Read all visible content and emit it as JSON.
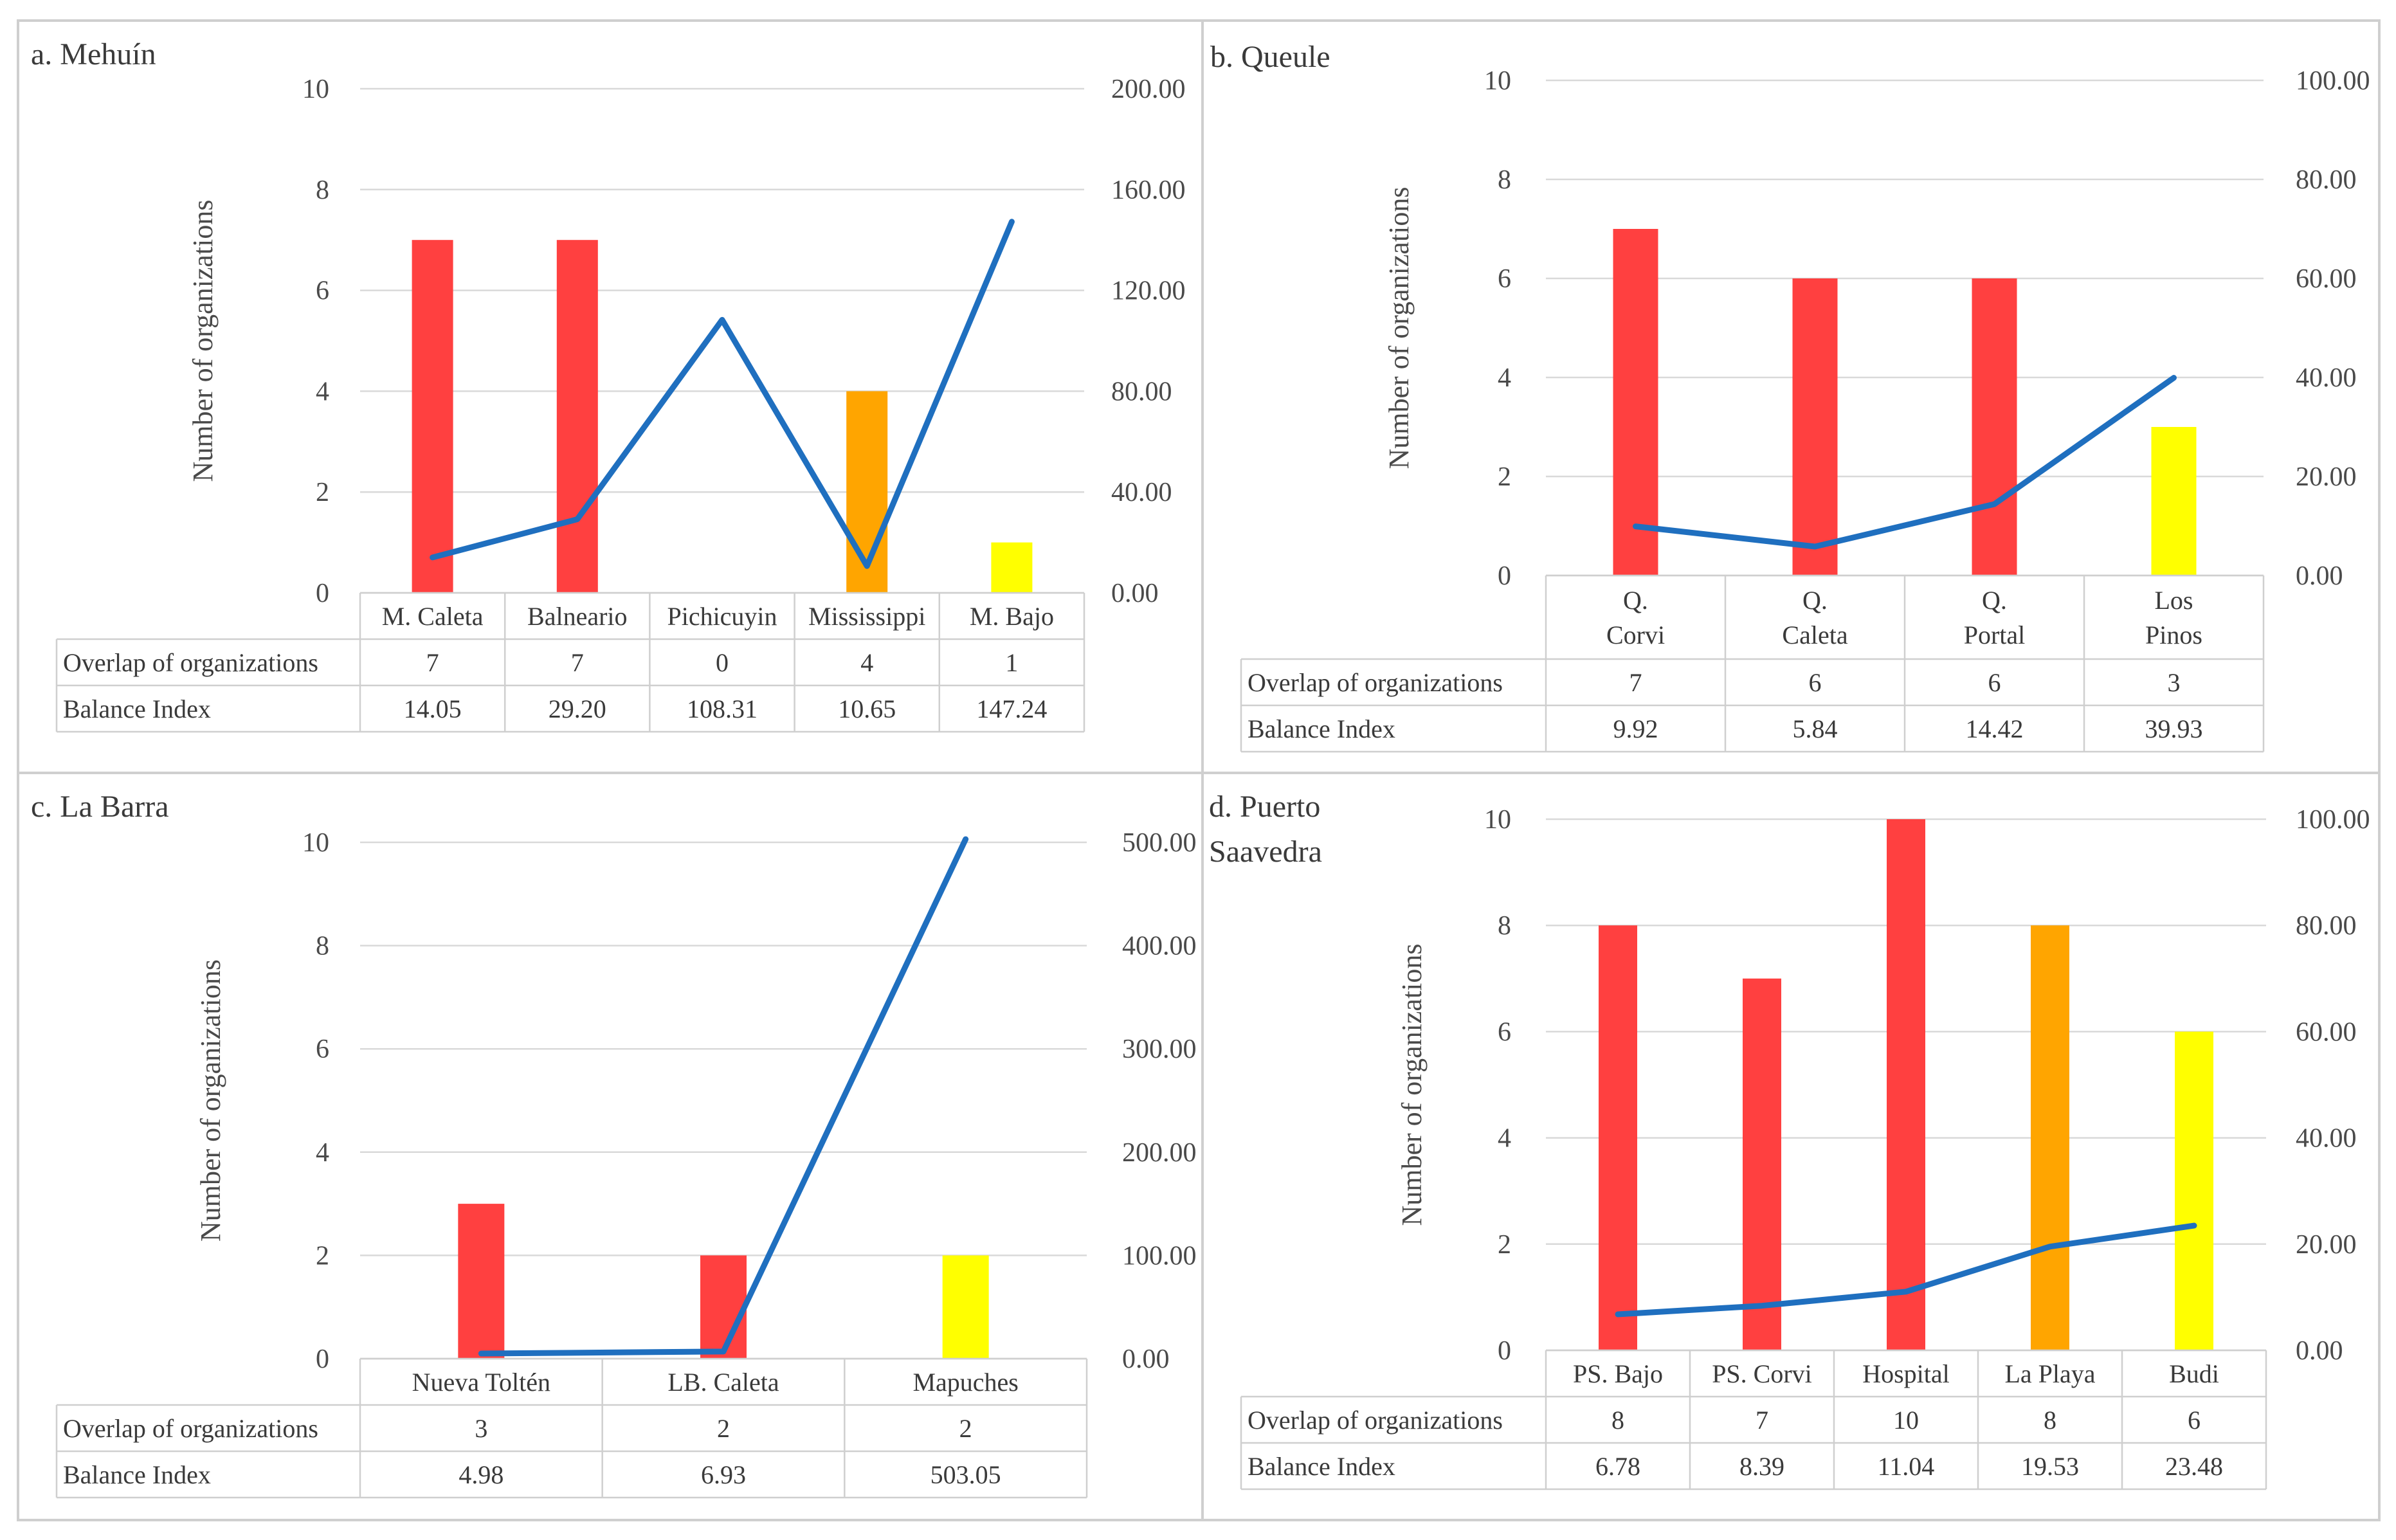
{
  "colors": {
    "high": "#ff4040",
    "mid": "#ffa500",
    "low": "#ffff00",
    "line": "#1f6fbf"
  },
  "chart_data": [
    {
      "type": "bar",
      "title": "a. Mehuín",
      "ylabel": "Number of organizations",
      "ylim": [
        0,
        10
      ],
      "y2lim": [
        0,
        200
      ],
      "y_ticks": [
        "0",
        "2",
        "4",
        "6",
        "8",
        "10"
      ],
      "y2_ticks": [
        "0.00",
        "40.00",
        "80.00",
        "120.00",
        "160.00",
        "200.00"
      ],
      "categories": [
        [
          "M. Caleta"
        ],
        [
          "Balneario"
        ],
        [
          "Pichicuyin"
        ],
        [
          "Mississippi"
        ],
        [
          "M. Bajo"
        ]
      ],
      "bar_colors": [
        "high",
        "high",
        "high",
        "mid",
        "low"
      ],
      "series": [
        {
          "name": "Overlap of organizations",
          "type": "bar",
          "values": [
            7,
            7,
            0,
            4,
            1
          ],
          "labels": [
            "7",
            "7",
            "0",
            "4",
            "1"
          ]
        },
        {
          "name": "Balance Index",
          "type": "line",
          "axis": "secondary",
          "values": [
            14.05,
            29.2,
            108.31,
            10.65,
            147.24
          ],
          "labels": [
            "14.05",
            "29.20",
            "108.31",
            "10.65",
            "147.24"
          ]
        }
      ]
    },
    {
      "type": "bar",
      "title": "b. Queule",
      "ylabel": "Number of organizations",
      "ylim": [
        0,
        10
      ],
      "y2lim": [
        0,
        100
      ],
      "y_ticks": [
        "0",
        "2",
        "4",
        "6",
        "8",
        "10"
      ],
      "y2_ticks": [
        "0.00",
        "20.00",
        "40.00",
        "60.00",
        "80.00",
        "100.00"
      ],
      "categories": [
        [
          "Q.",
          "Corvi"
        ],
        [
          "Q.",
          "Caleta"
        ],
        [
          "Q.",
          "Portal"
        ],
        [
          "Los",
          "Pinos"
        ]
      ],
      "bar_colors": [
        "high",
        "high",
        "high",
        "low"
      ],
      "series": [
        {
          "name": "Overlap of organizations",
          "type": "bar",
          "values": [
            7,
            6,
            6,
            3
          ],
          "labels": [
            "7",
            "6",
            "6",
            "3"
          ]
        },
        {
          "name": "Balance Index",
          "type": "line",
          "axis": "secondary",
          "values": [
            9.92,
            5.84,
            14.42,
            39.93
          ],
          "labels": [
            "9.92",
            "5.84",
            "14.42",
            "39.93"
          ]
        }
      ]
    },
    {
      "type": "bar",
      "title": "c. La Barra",
      "ylabel": "Number of organizations",
      "ylim": [
        0,
        10
      ],
      "y2lim": [
        0,
        500
      ],
      "y_ticks": [
        "0",
        "2",
        "4",
        "6",
        "8",
        "10"
      ],
      "y2_ticks": [
        "0.00",
        "100.00",
        "200.00",
        "300.00",
        "400.00",
        "500.00"
      ],
      "categories": [
        [
          "Nueva Toltén"
        ],
        [
          "LB. Caleta"
        ],
        [
          "Mapuches"
        ]
      ],
      "bar_colors": [
        "high",
        "high",
        "low"
      ],
      "series": [
        {
          "name": "Overlap of organizations",
          "type": "bar",
          "values": [
            3,
            2,
            2
          ],
          "labels": [
            "3",
            "2",
            "2"
          ]
        },
        {
          "name": "Balance Index",
          "type": "line",
          "axis": "secondary",
          "values": [
            4.98,
            6.93,
            503.05
          ],
          "labels": [
            "4.98",
            "6.93",
            "503.05"
          ]
        }
      ]
    },
    {
      "type": "bar",
      "title": "d. Puerto Saavedra",
      "title_lines": [
        "d. Puerto",
        "Saavedra"
      ],
      "ylabel": "Number of organizations",
      "ylim": [
        0,
        10
      ],
      "y2lim": [
        0,
        100
      ],
      "y_ticks": [
        "0",
        "2",
        "4",
        "6",
        "8",
        "10"
      ],
      "y2_ticks": [
        "0.00",
        "20.00",
        "40.00",
        "60.00",
        "80.00",
        "100.00"
      ],
      "categories": [
        [
          "PS. Bajo"
        ],
        [
          "PS. Corvi"
        ],
        [
          "Hospital"
        ],
        [
          "La Playa"
        ],
        [
          "Budi"
        ]
      ],
      "bar_colors": [
        "high",
        "high",
        "high",
        "mid",
        "low"
      ],
      "series": [
        {
          "name": "Overlap of organizations",
          "type": "bar",
          "values": [
            8,
            7,
            10,
            8,
            6
          ],
          "labels": [
            "8",
            "7",
            "10",
            "8",
            "6"
          ]
        },
        {
          "name": "Balance Index",
          "type": "line",
          "axis": "secondary",
          "values": [
            6.78,
            8.39,
            11.04,
            19.53,
            23.48
          ],
          "labels": [
            "6.78",
            "8.39",
            "11.04",
            "19.53",
            "23.48"
          ]
        }
      ]
    }
  ]
}
